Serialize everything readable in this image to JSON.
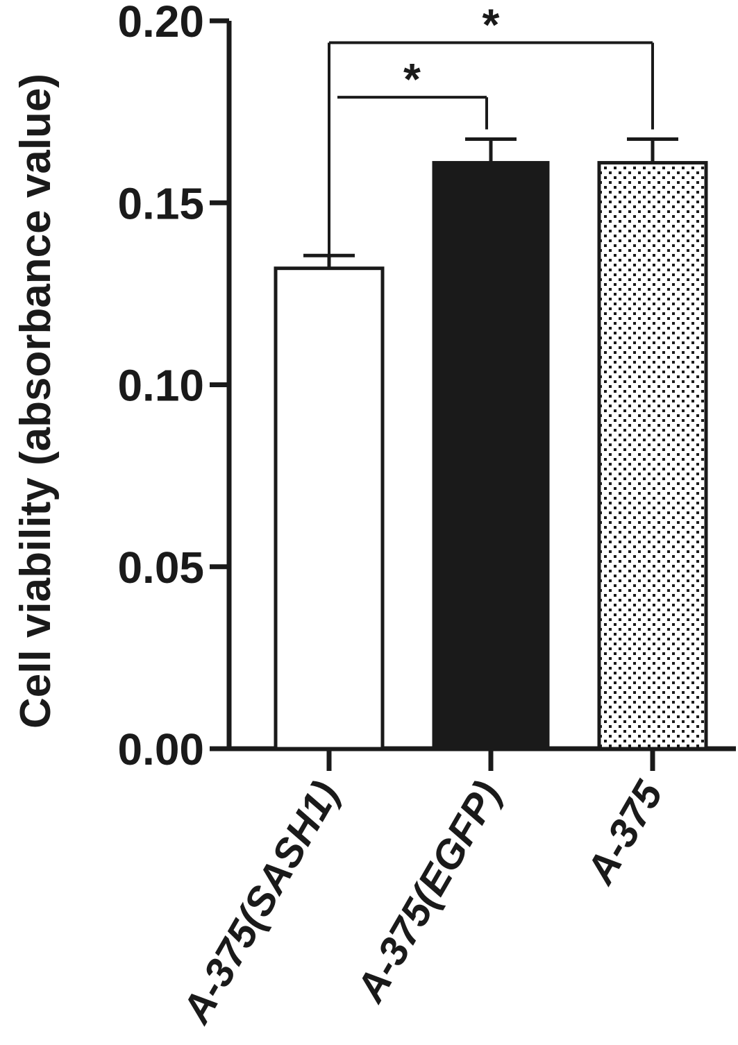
{
  "chart_data": {
    "type": "bar",
    "ylabel": "Cell viability (absorbance value)",
    "xlabel": "",
    "ylim": [
      0,
      0.2
    ],
    "yticks": [
      "0.00",
      "0.05",
      "0.10",
      "0.15",
      "0.20"
    ],
    "categories": [
      "A-375(SASH1)",
      "A-375(EGFP)",
      "A-375"
    ],
    "values": [
      0.132,
      0.161,
      0.161
    ],
    "errors": [
      0.0035,
      0.0065,
      0.0065
    ],
    "fills": [
      "white",
      "black",
      "dotted"
    ],
    "colors": {
      "ink": "#1a1a1a",
      "white": "#ffffff"
    },
    "significance": [
      {
        "from": 0,
        "to": 1,
        "label": "*",
        "y": 0.179
      },
      {
        "from": 0,
        "to": 2,
        "label": "*",
        "y": 0.194
      }
    ],
    "grid": false,
    "legend": "none"
  }
}
